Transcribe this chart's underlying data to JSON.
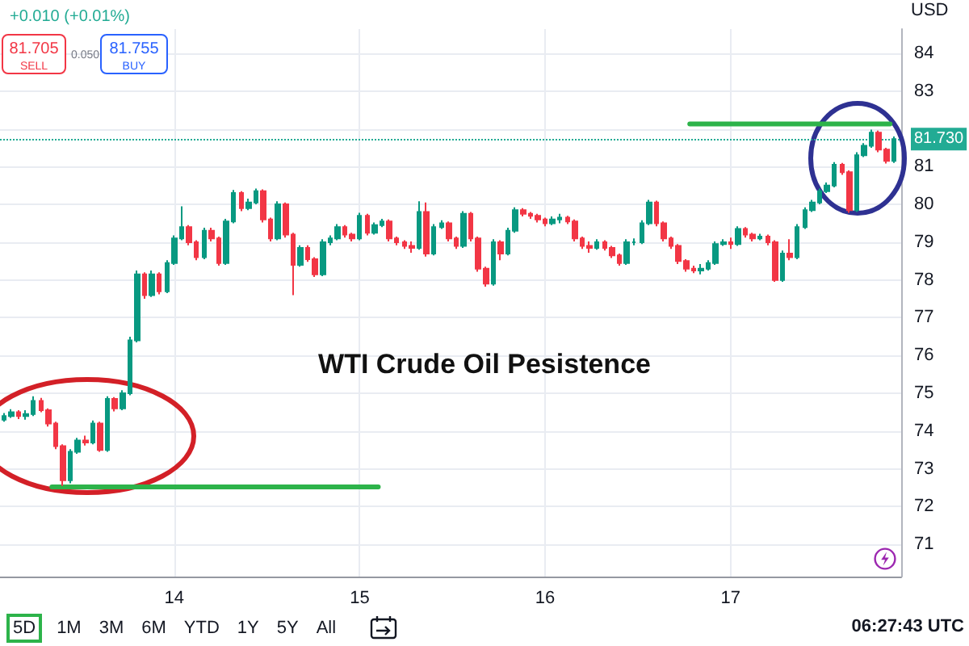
{
  "chart_data": {
    "type": "candlestick",
    "title": "WTI Crude Oil Pesistence",
    "ylabel": "USD",
    "x": [
      13.08,
      13.12,
      13.16,
      13.2,
      13.24,
      13.28,
      13.32,
      13.36,
      13.4,
      13.44,
      13.48,
      13.52,
      13.56,
      13.6,
      13.64,
      13.68,
      13.72,
      13.76,
      13.8,
      13.84,
      13.88,
      13.92,
      13.96,
      14,
      14.04,
      14.08,
      14.12,
      14.16,
      14.2,
      14.24,
      14.28,
      14.32,
      14.36,
      14.4,
      14.44,
      14.48,
      14.52,
      14.56,
      14.6,
      14.64,
      14.68,
      14.72,
      14.76,
      14.8,
      14.84,
      14.88,
      14.92,
      14.96,
      15,
      15.04,
      15.08,
      15.12,
      15.16,
      15.2,
      15.24,
      15.28,
      15.32,
      15.36,
      15.4,
      15.44,
      15.48,
      15.52,
      15.56,
      15.6,
      15.64,
      15.68,
      15.72,
      15.76,
      15.8,
      15.84,
      15.88,
      15.92,
      15.96,
      16,
      16.04,
      16.08,
      16.12,
      16.16,
      16.2,
      16.24,
      16.28,
      16.32,
      16.36,
      16.4,
      16.44,
      16.48,
      16.52,
      16.56,
      16.6,
      16.64,
      16.68,
      16.72,
      16.76,
      16.8,
      16.84,
      16.88,
      16.92,
      16.96,
      17,
      17.04,
      17.08,
      17.12,
      17.16,
      17.2,
      17.24,
      17.28,
      17.32,
      17.36,
      17.4,
      17.44,
      17.48,
      17.52,
      17.56,
      17.6,
      17.64,
      17.68,
      17.72,
      17.76,
      17.8,
      17.84,
      17.88
    ],
    "ohlc": [
      [
        74.3,
        74.48,
        74.25,
        74.4
      ],
      [
        74.4,
        74.58,
        74.35,
        74.5
      ],
      [
        74.5,
        74.55,
        74.32,
        74.4
      ],
      [
        74.4,
        74.55,
        74.3,
        74.45
      ],
      [
        74.45,
        74.92,
        74.4,
        74.8
      ],
      [
        74.8,
        74.88,
        74.5,
        74.55
      ],
      [
        74.55,
        74.6,
        74.12,
        74.2
      ],
      [
        74.2,
        74.25,
        73.52,
        73.6
      ],
      [
        73.6,
        73.65,
        72.55,
        72.7
      ],
      [
        72.7,
        73.52,
        72.62,
        73.45
      ],
      [
        73.45,
        73.82,
        73.4,
        73.75
      ],
      [
        73.75,
        73.88,
        73.62,
        73.7
      ],
      [
        73.7,
        74.28,
        73.65,
        74.2
      ],
      [
        74.2,
        74.25,
        73.45,
        73.5
      ],
      [
        73.5,
        74.92,
        73.45,
        74.85
      ],
      [
        74.85,
        74.9,
        74.52,
        74.6
      ],
      [
        74.6,
        75.08,
        74.55,
        75.0
      ],
      [
        75.0,
        76.5,
        74.95,
        76.4
      ],
      [
        76.4,
        78.25,
        76.35,
        78.15
      ],
      [
        78.15,
        78.2,
        77.5,
        77.6
      ],
      [
        77.6,
        78.25,
        77.55,
        78.15
      ],
      [
        78.15,
        78.2,
        77.62,
        77.7
      ],
      [
        77.7,
        78.52,
        77.65,
        78.45
      ],
      [
        78.45,
        79.18,
        78.4,
        79.1
      ],
      [
        79.1,
        79.95,
        79.05,
        79.4
      ],
      [
        79.4,
        79.45,
        78.92,
        79.0
      ],
      [
        79.0,
        79.05,
        78.52,
        78.6
      ],
      [
        78.6,
        79.38,
        78.55,
        79.3
      ],
      [
        79.3,
        79.38,
        79.02,
        79.1
      ],
      [
        79.1,
        79.15,
        78.38,
        78.45
      ],
      [
        78.45,
        79.62,
        78.4,
        79.55
      ],
      [
        79.55,
        80.38,
        79.5,
        80.3
      ],
      [
        80.3,
        80.35,
        79.82,
        79.9
      ],
      [
        79.9,
        80.15,
        79.85,
        80.05
      ],
      [
        80.05,
        80.42,
        80.0,
        80.35
      ],
      [
        80.35,
        80.4,
        79.52,
        79.6
      ],
      [
        79.6,
        79.65,
        79.02,
        79.1
      ],
      [
        79.1,
        80.08,
        79.05,
        80.0
      ],
      [
        80.0,
        80.05,
        79.12,
        79.2
      ],
      [
        79.2,
        79.25,
        77.6,
        78.4
      ],
      [
        78.4,
        78.92,
        78.35,
        78.85
      ],
      [
        78.85,
        78.92,
        78.48,
        78.55
      ],
      [
        78.55,
        78.6,
        78.08,
        78.15
      ],
      [
        78.15,
        79.08,
        78.1,
        79.0
      ],
      [
        79.0,
        79.18,
        78.92,
        79.1
      ],
      [
        79.1,
        79.48,
        79.05,
        79.4
      ],
      [
        79.4,
        79.45,
        79.12,
        79.2
      ],
      [
        79.2,
        79.25,
        79.02,
        79.1
      ],
      [
        79.1,
        79.78,
        79.05,
        79.7
      ],
      [
        79.7,
        79.75,
        79.18,
        79.25
      ],
      [
        79.25,
        79.52,
        79.2,
        79.45
      ],
      [
        79.45,
        79.62,
        79.4,
        79.55
      ],
      [
        79.55,
        79.6,
        79.02,
        79.1
      ],
      [
        79.1,
        79.15,
        78.92,
        79.0
      ],
      [
        79.0,
        79.05,
        78.82,
        78.9
      ],
      [
        78.9,
        79.02,
        78.72,
        78.85
      ],
      [
        78.85,
        80.08,
        78.8,
        79.8
      ],
      [
        79.8,
        80.05,
        78.62,
        78.7
      ],
      [
        78.7,
        79.48,
        78.65,
        79.4
      ],
      [
        79.4,
        79.58,
        79.35,
        79.5
      ],
      [
        79.5,
        79.55,
        79.02,
        79.1
      ],
      [
        79.1,
        79.15,
        78.82,
        78.9
      ],
      [
        78.9,
        79.82,
        78.85,
        79.75
      ],
      [
        79.75,
        79.8,
        79.02,
        79.1
      ],
      [
        79.1,
        79.15,
        78.22,
        78.3
      ],
      [
        78.3,
        78.35,
        77.82,
        77.9
      ],
      [
        77.9,
        79.08,
        77.85,
        79.0
      ],
      [
        79.0,
        79.05,
        78.52,
        78.7
      ],
      [
        78.7,
        79.38,
        78.65,
        79.3
      ],
      [
        79.3,
        79.92,
        79.25,
        79.85
      ],
      [
        79.85,
        79.9,
        79.68,
        79.75
      ],
      [
        79.75,
        79.8,
        79.62,
        79.7
      ],
      [
        79.7,
        79.75,
        79.52,
        79.6
      ],
      [
        79.6,
        79.65,
        79.42,
        79.5
      ],
      [
        79.5,
        79.68,
        79.45,
        79.6
      ],
      [
        79.6,
        79.75,
        79.5,
        79.65
      ],
      [
        79.65,
        79.7,
        79.48,
        79.55
      ],
      [
        79.55,
        79.6,
        79.02,
        79.1
      ],
      [
        79.1,
        79.15,
        78.82,
        78.9
      ],
      [
        78.9,
        79.02,
        78.72,
        78.85
      ],
      [
        78.85,
        79.08,
        78.8,
        79.0
      ],
      [
        79.0,
        79.05,
        78.78,
        78.85
      ],
      [
        78.85,
        78.9,
        78.58,
        78.65
      ],
      [
        78.65,
        78.7,
        78.38,
        78.45
      ],
      [
        78.45,
        79.08,
        78.4,
        79.0
      ],
      [
        79.0,
        79.1,
        78.92,
        79.0
      ],
      [
        79.0,
        79.58,
        78.95,
        79.5
      ],
      [
        79.5,
        80.12,
        79.45,
        80.05
      ],
      [
        80.05,
        80.1,
        79.42,
        79.5
      ],
      [
        79.5,
        79.55,
        79.02,
        79.1
      ],
      [
        79.1,
        79.15,
        78.82,
        78.9
      ],
      [
        78.9,
        78.95,
        78.42,
        78.5
      ],
      [
        78.5,
        78.55,
        78.22,
        78.3
      ],
      [
        78.3,
        78.38,
        78.18,
        78.25
      ],
      [
        78.25,
        78.42,
        78.15,
        78.3
      ],
      [
        78.3,
        78.52,
        78.25,
        78.45
      ],
      [
        78.45,
        79.02,
        78.4,
        78.95
      ],
      [
        78.95,
        79.08,
        78.9,
        79.0
      ],
      [
        79.0,
        79.12,
        78.82,
        78.95
      ],
      [
        78.95,
        79.42,
        78.9,
        79.35
      ],
      [
        79.35,
        79.4,
        79.12,
        79.2
      ],
      [
        79.2,
        79.25,
        79.02,
        79.1
      ],
      [
        79.1,
        79.22,
        79.05,
        79.15
      ],
      [
        79.15,
        79.2,
        78.92,
        79.0
      ],
      [
        79.0,
        79.05,
        77.95,
        78.0
      ],
      [
        78.0,
        78.78,
        77.95,
        78.7
      ],
      [
        78.7,
        79.08,
        78.52,
        78.6
      ],
      [
        78.6,
        79.48,
        78.55,
        79.4
      ],
      [
        79.4,
        79.92,
        79.35,
        79.85
      ],
      [
        79.85,
        80.12,
        79.8,
        80.05
      ],
      [
        80.05,
        80.42,
        80.0,
        80.35
      ],
      [
        80.35,
        80.58,
        80.3,
        80.5
      ],
      [
        80.5,
        81.12,
        80.45,
        81.05
      ],
      [
        81.05,
        81.1,
        80.78,
        80.85
      ],
      [
        80.85,
        80.9,
        79.78,
        79.85
      ],
      [
        79.85,
        81.38,
        79.8,
        81.3
      ],
      [
        81.3,
        81.62,
        81.25,
        81.55
      ],
      [
        81.55,
        81.98,
        81.5,
        81.9
      ],
      [
        81.9,
        81.95,
        81.38,
        81.45
      ],
      [
        81.45,
        81.5,
        81.08,
        81.15
      ],
      [
        81.15,
        81.8,
        81.1,
        81.73
      ]
    ],
    "series": [
      {
        "type": "line",
        "x": [
          13.34,
          15.1
        ],
        "values": [
          72.52,
          72.52
        ],
        "color": "#2db34a"
      },
      {
        "type": "line",
        "x": [
          16.78,
          17.86
        ],
        "values": [
          82.13,
          82.13
        ],
        "color": "#2db34a"
      }
    ],
    "marker": "none",
    "xlim": [
      13.06,
      17.92
    ],
    "xticks": [
      14,
      15,
      16,
      17
    ],
    "ylim": [
      70.15,
      84.64
    ],
    "yticks": [
      71,
      72,
      73,
      74,
      75,
      76,
      77,
      78,
      79,
      80,
      81,
      {
        "value": 82,
        "label": null
      },
      83,
      84
    ],
    "grid": true,
    "ref_lines": [
      {
        "axis": "y",
        "value": 81.73,
        "label": "81.730",
        "color": "#22ab94",
        "line_style": "dotted"
      }
    ],
    "annotations": [
      "+0.010 (+0.01%)",
      "81.705",
      "SELL",
      "0.050",
      "81.755",
      "BUY",
      "5D",
      "1M",
      "3M",
      "6M",
      "YTD",
      "1Y",
      "5Y",
      "All",
      "06:27:43 UTC"
    ]
  }
}
